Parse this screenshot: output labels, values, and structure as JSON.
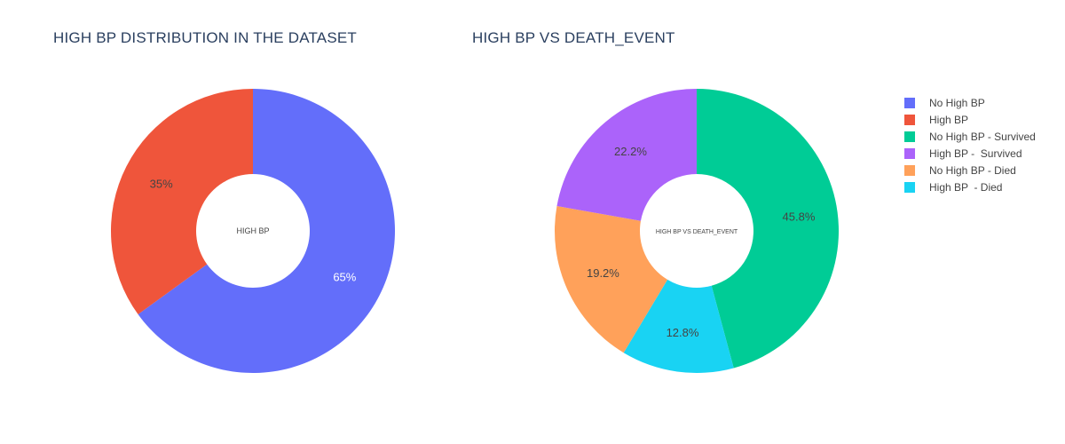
{
  "chart_data": [
    {
      "type": "pie",
      "title": "HIGH BP DISTRIBUTION IN THE DATASET",
      "center_label": "HIGH BP",
      "slices": [
        {
          "label": "No High BP",
          "value": 65,
          "text": "65%",
          "color": "#636efa",
          "text_color": "#ffffff"
        },
        {
          "label": "High BP",
          "value": 35,
          "text": "35%",
          "color": "#ef553b",
          "text_color": "#444444"
        }
      ]
    },
    {
      "type": "pie",
      "title": "HIGH BP VS DEATH_EVENT",
      "center_label": "HIGH BP VS DEATH_EVENT",
      "slices": [
        {
          "label": "No High BP - Survived",
          "value": 45.8,
          "text": "45.8%",
          "color": "#00cc96",
          "text_color": "#444444"
        },
        {
          "label": "High BP  - Died",
          "value": 12.8,
          "text": "12.8%",
          "color": "#19d3f3",
          "text_color": "#444444"
        },
        {
          "label": "No High BP - Died",
          "value": 19.2,
          "text": "19.2%",
          "color": "#ffa15a",
          "text_color": "#444444"
        },
        {
          "label": "High BP -  Survived",
          "value": 22.2,
          "text": "22.2%",
          "color": "#ab63fa",
          "text_color": "#444444"
        }
      ]
    }
  ],
  "legend": {
    "placement": "right",
    "items": [
      {
        "label": "No High BP",
        "color": "#636efa"
      },
      {
        "label": "High BP",
        "color": "#ef553b"
      },
      {
        "label": "No High BP - Survived",
        "color": "#00cc96"
      },
      {
        "label": "High BP -  Survived",
        "color": "#ab63fa"
      },
      {
        "label": "No High BP - Died",
        "color": "#ffa15a"
      },
      {
        "label": "High BP  - Died",
        "color": "#19d3f3"
      }
    ]
  }
}
